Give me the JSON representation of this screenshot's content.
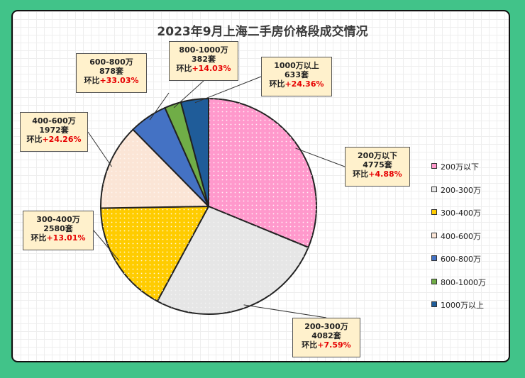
{
  "chart_data": {
    "type": "pie",
    "title": "2023年9月上海二手房价格段成交情况",
    "slices": [
      {
        "name": "200万以下",
        "value": 4775,
        "unit": "套",
        "change_label": "环比",
        "change": "+4.88%",
        "color": "#ff99cc"
      },
      {
        "name": "200-300万",
        "value": 4082,
        "unit": "套",
        "change_label": "环比",
        "change": "+7.59%",
        "color": "#e6e6e6"
      },
      {
        "name": "300-400万",
        "value": 2580,
        "unit": "套",
        "change_label": "环比",
        "change": "+13.01%",
        "color": "#ffcc00"
      },
      {
        "name": "400-600万",
        "value": 1972,
        "unit": "套",
        "change_label": "环比",
        "change": "+24.26%",
        "color": "#fbe5d6"
      },
      {
        "name": "600-800万",
        "value": 878,
        "unit": "套",
        "change_label": "环比",
        "change": "+33.03%",
        "color": "#4472c4"
      },
      {
        "name": "800-1000万",
        "value": 382,
        "unit": "套",
        "change_label": "环比",
        "change": "+14.03%",
        "color": "#70ad47"
      },
      {
        "name": "1000万以上",
        "value": 633,
        "unit": "套",
        "change_label": "环比",
        "change": "+24.36%",
        "color": "#1f5c99"
      }
    ],
    "legend_position": "right"
  }
}
